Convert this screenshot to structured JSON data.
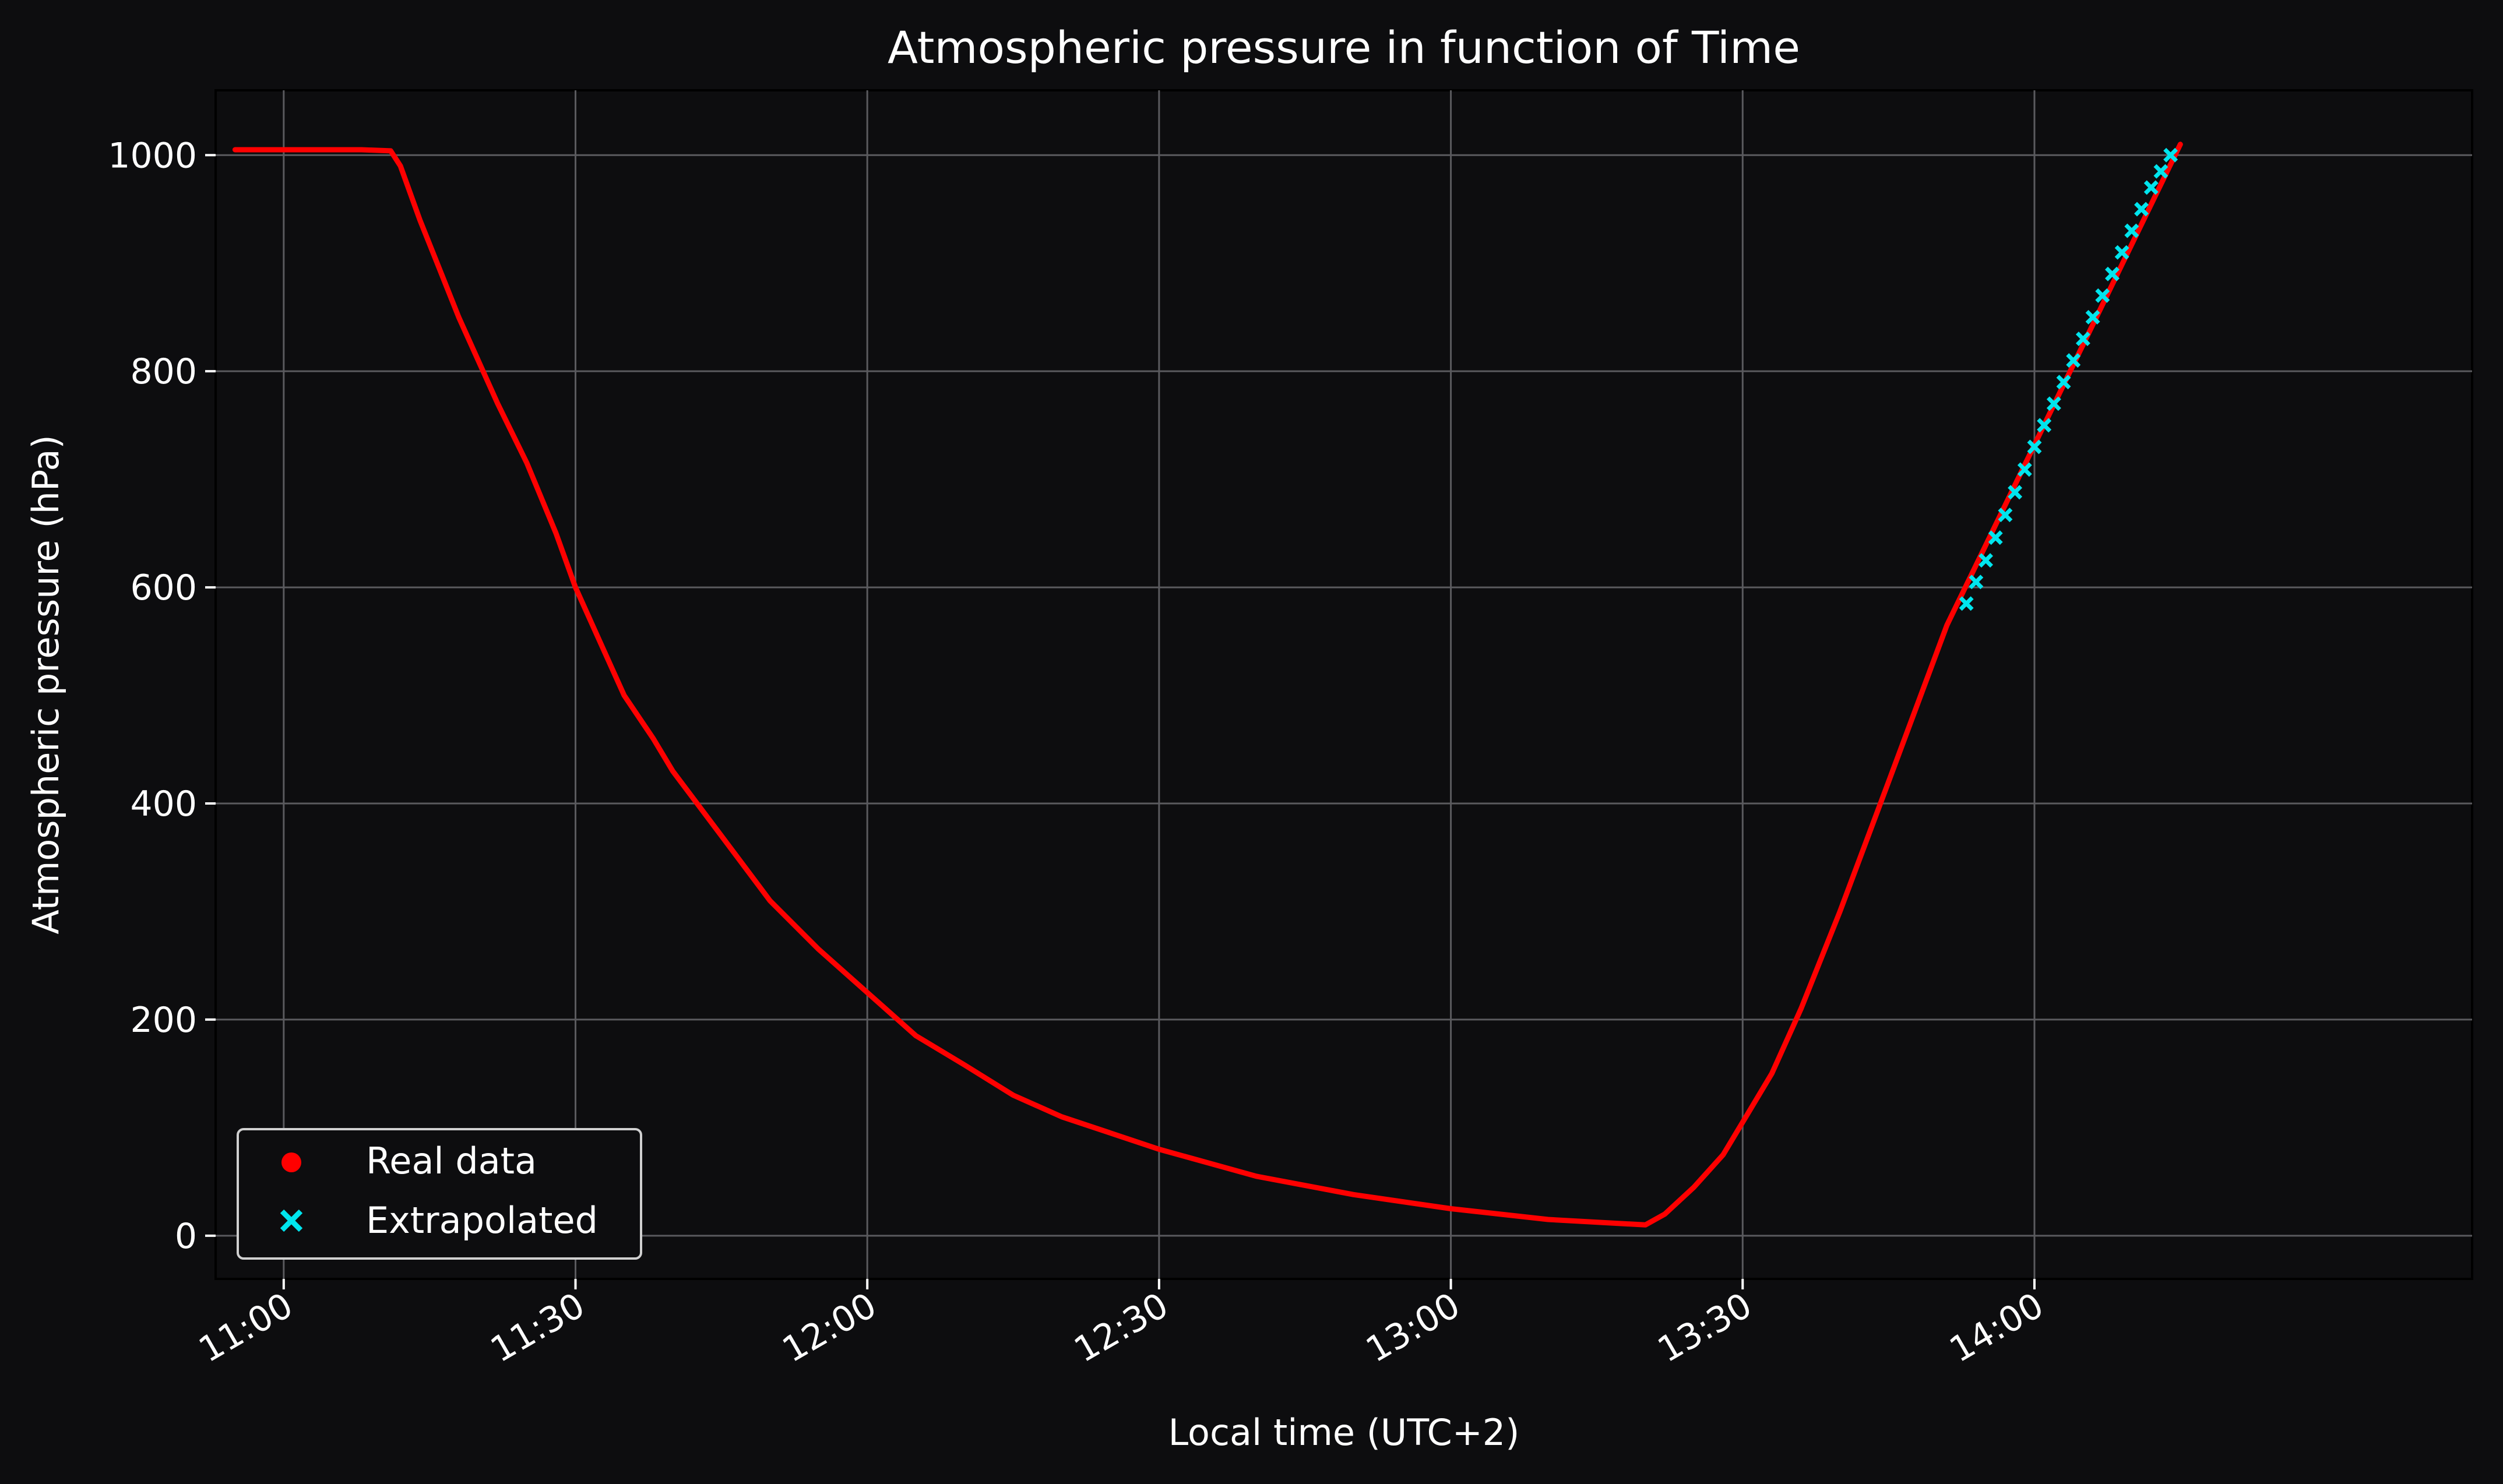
{
  "chart_data": {
    "type": "line",
    "title": "Atmospheric pressure in function of Time",
    "xlabel": "Local time (UTC+2)",
    "ylabel": "Atmospheric pressure (hPa)",
    "x_is_time": true,
    "xlim": [
      "10:53",
      "14:45"
    ],
    "ylim": [
      -40,
      1060
    ],
    "x_ticks": [
      "11:00",
      "11:30",
      "12:00",
      "12:30",
      "13:00",
      "13:30",
      "14:00"
    ],
    "y_ticks": [
      "0",
      "200",
      "400",
      "600",
      "800",
      "1000"
    ],
    "grid": true,
    "legend": {
      "position": "lower-left",
      "entries": [
        {
          "label": "Real data",
          "marker": "circle",
          "color": "#ff0000"
        },
        {
          "label": "Extrapolated",
          "marker": "x",
          "color": "#00e5ee"
        }
      ]
    },
    "series": [
      {
        "name": "Real data",
        "color": "#ff0000",
        "style": "line",
        "x": [
          "10:55",
          "11:00",
          "11:05",
          "11:08",
          "11:11",
          "11:12",
          "11:14",
          "11:16",
          "11:18",
          "11:20",
          "11:22",
          "11:25",
          "11:28",
          "11:30",
          "11:32",
          "11:35",
          "11:38",
          "11:40",
          "11:45",
          "11:50",
          "11:55",
          "12:00",
          "12:05",
          "12:10",
          "12:15",
          "12:20",
          "12:25",
          "12:30",
          "12:40",
          "12:50",
          "13:00",
          "13:10",
          "13:20",
          "13:22",
          "13:25",
          "13:28",
          "13:30",
          "13:33",
          "13:36",
          "13:40",
          "13:45",
          "13:51",
          "14:15"
        ],
        "y": [
          1005,
          1005,
          1005,
          1005,
          1004,
          990,
          940,
          895,
          850,
          810,
          770,
          715,
          650,
          600,
          560,
          500,
          460,
          430,
          370,
          310,
          265,
          225,
          185,
          158,
          130,
          110,
          95,
          80,
          55,
          38,
          25,
          15,
          10,
          20,
          45,
          75,
          105,
          150,
          210,
          300,
          420,
          565,
          1010
        ]
      },
      {
        "name": "Extrapolated",
        "color": "#00e5ee",
        "style": "x-markers",
        "x": [
          "13:53",
          "13:54",
          "13:55",
          "13:56",
          "13:57",
          "13:58",
          "13:59",
          "14:00",
          "14:01",
          "14:02",
          "14:03",
          "14:04",
          "14:05",
          "14:06",
          "14:07",
          "14:08",
          "14:09",
          "14:10",
          "14:11",
          "14:12",
          "14:13",
          "14:14"
        ],
        "y": [
          585,
          605,
          625,
          646,
          667,
          688,
          709,
          730,
          750,
          770,
          790,
          810,
          830,
          850,
          870,
          890,
          910,
          930,
          950,
          970,
          985,
          1000
        ]
      }
    ]
  }
}
